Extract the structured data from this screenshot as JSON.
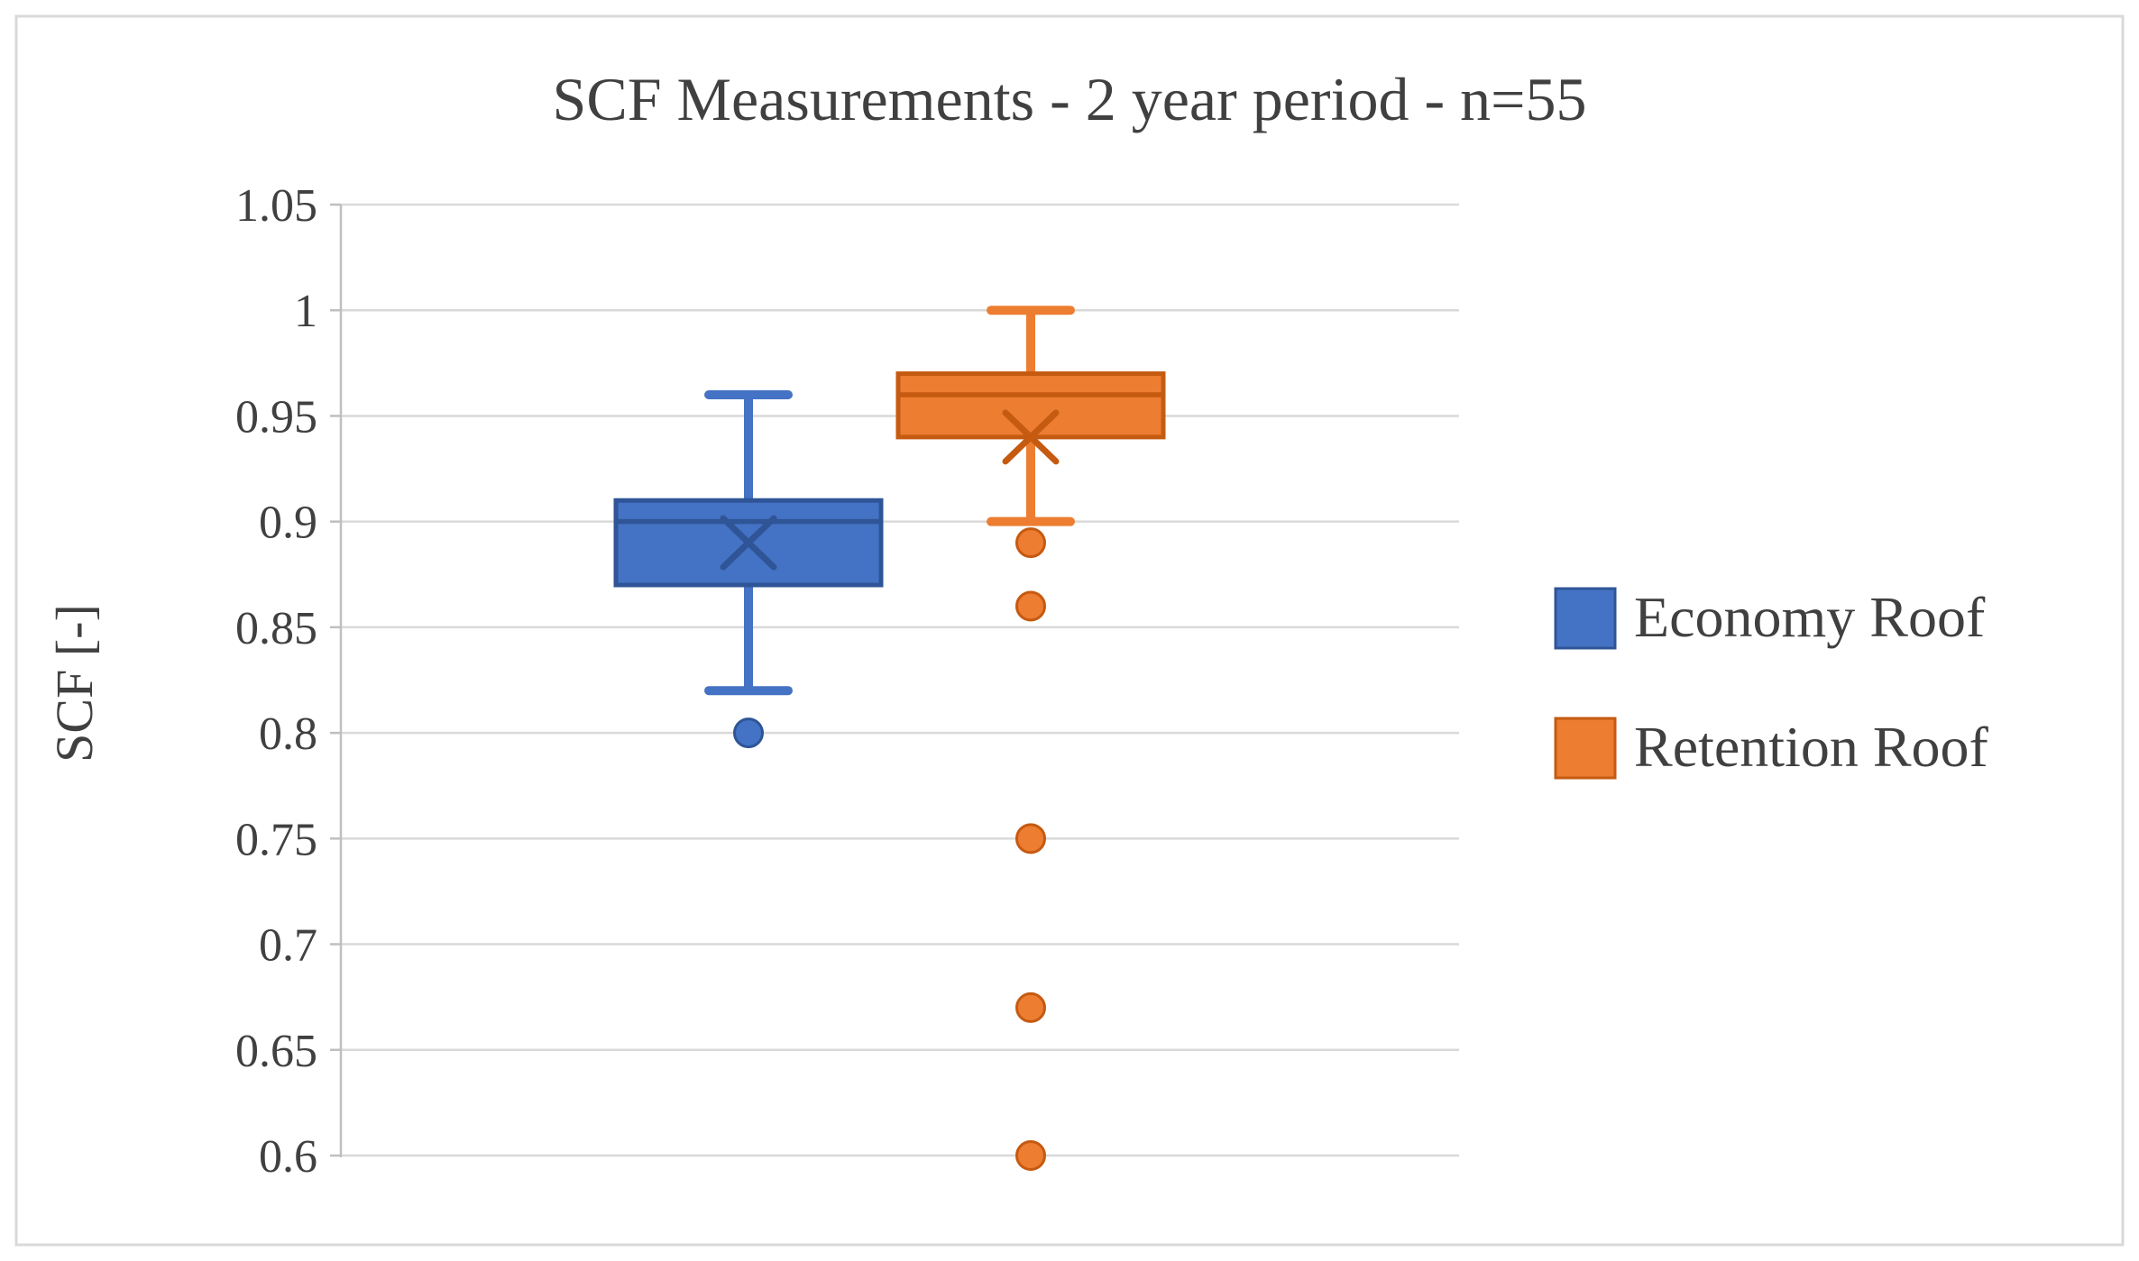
{
  "figure": {
    "background": "#ffffff",
    "border_color": "#d9d9d9"
  },
  "chart_data": {
    "type": "boxplot",
    "title": "SCF Measurements - 2 year period - n=55",
    "xlabel": "",
    "ylabel": "SCF [-]",
    "ylim": [
      0.6,
      1.05
    ],
    "grid": true,
    "legend_position": "right",
    "yticks": [
      {
        "label": "1.05",
        "value": 1.05
      },
      {
        "label": "1",
        "value": 1.0
      },
      {
        "label": "0.95",
        "value": 0.95
      },
      {
        "label": "0.9",
        "value": 0.9
      },
      {
        "label": "0.85",
        "value": 0.85
      },
      {
        "label": "0.8",
        "value": 0.8
      },
      {
        "label": "0.75",
        "value": 0.75
      },
      {
        "label": "0.7",
        "value": 0.7
      },
      {
        "label": "0.65",
        "value": 0.65
      },
      {
        "label": "0.6",
        "value": 0.6
      }
    ],
    "series": [
      {
        "name": "Economy Roof",
        "fill_color": "#4472c4",
        "border_color": "#2f5597",
        "whisker_low": 0.82,
        "q1": 0.87,
        "median": 0.9,
        "q3": 0.91,
        "whisker_high": 0.96,
        "mean": 0.89,
        "outliers": [
          0.8
        ]
      },
      {
        "name": "Retention Roof",
        "fill_color": "#ed7d31",
        "border_color": "#c55a11",
        "whisker_low": 0.9,
        "q1": 0.94,
        "median": 0.96,
        "q3": 0.97,
        "whisker_high": 1.0,
        "mean": 0.94,
        "outliers": [
          0.89,
          0.86,
          0.75,
          0.67,
          0.6
        ]
      }
    ],
    "colors": {
      "gridline": "#d9d9d9",
      "axis_line": "#bfbfbf",
      "text": "#404040"
    }
  }
}
